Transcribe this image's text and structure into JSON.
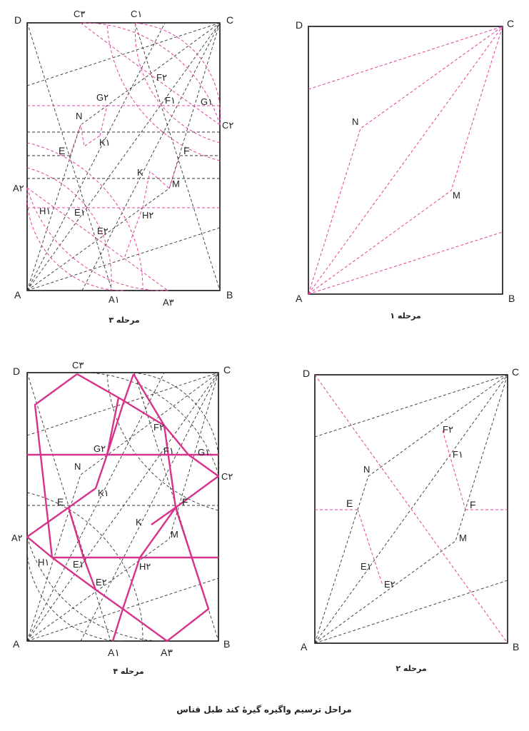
{
  "caption": "مراحل ترسیم واگیره گیرهٔ کند طبل قناس",
  "colors": {
    "frame": "#111111",
    "construction": "#333333",
    "pink": "#e0409b",
    "pattern": "#d6338a"
  },
  "panels": [
    {
      "id": "step1",
      "caption": "مرحله ۱",
      "labels": {
        "A": "A",
        "B": "B",
        "C": "C",
        "D": "D",
        "N": "N",
        "M": "M"
      }
    },
    {
      "id": "step2",
      "caption": "مرحله ۲",
      "labels": {
        "A": "A",
        "B": "B",
        "C": "C",
        "D": "D",
        "N": "N",
        "M": "M",
        "E": "E",
        "F": "F",
        "E1": "E۱",
        "E2": "E۲",
        "F1": "F۱",
        "F2": "F۲"
      }
    },
    {
      "id": "step3",
      "caption": "مرحله ۳",
      "labels": {
        "A": "A",
        "B": "B",
        "C": "C",
        "D": "D",
        "N": "N",
        "M": "M",
        "K": "K",
        "K1": "K۱",
        "E": "E",
        "F": "F",
        "E1": "E۱",
        "E2": "E۲",
        "F1": "F۱",
        "F2": "F۲",
        "G1": "G۱",
        "G2": "G۲",
        "H1": "H۱",
        "H2": "H۲",
        "A1": "A۱",
        "A2": "A۲",
        "A3": "A۳",
        "C1": "C۱",
        "C2": "C۲",
        "C3": "C۳"
      }
    },
    {
      "id": "step4",
      "caption": "مرحله ۴",
      "labels": {
        "A": "A",
        "B": "B",
        "C": "C",
        "D": "D",
        "N": "N",
        "M": "M",
        "K": "K",
        "K1": "K۱",
        "E": "E",
        "F": "F",
        "E1": "E۱",
        "E2": "E۲",
        "F1": "F۱",
        "F2": "F۲",
        "G1": "G۱",
        "G2": "G۲",
        "H1": "H۱",
        "H2": "H۲",
        "A1": "A۱",
        "A2": "A۲",
        "A3": "A۳",
        "C2": "C۲",
        "C3": "C۳"
      }
    }
  ]
}
